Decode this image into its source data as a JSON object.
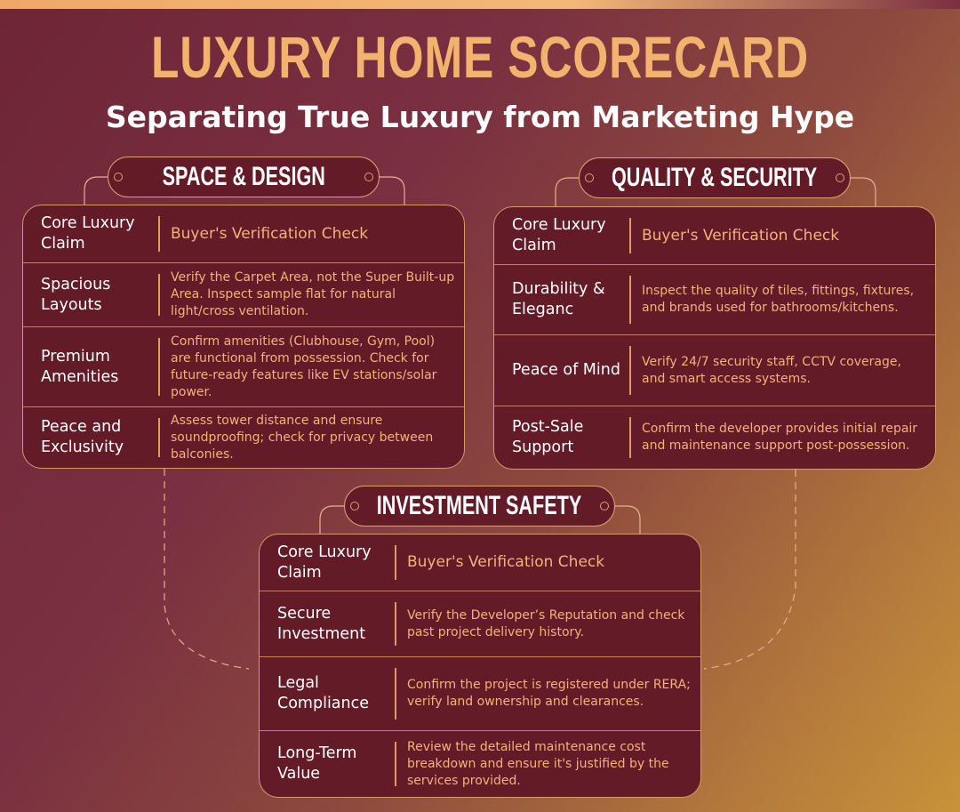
{
  "header": {
    "title": "LUXURY HOME SCORECARD",
    "subtitle": "Separating True Luxury from Marketing Hype"
  },
  "colors": {
    "accent": "#f3b36e",
    "card": "#621b27",
    "border": "#e0a070"
  },
  "sections": [
    {
      "title": "SPACE & DESIGN",
      "head_left": "Core Luxury Claim",
      "head_right": "Buyer's Verification Check",
      "rows": [
        {
          "claim": "Spacious Layouts",
          "check": "Verify the Carpet Area, not the Super Built-up Area. Inspect sample flat for natural light/cross ventilation."
        },
        {
          "claim": "Premium Amenities",
          "check": "Confirm amenities (Clubhouse, Gym, Pool) are functional from possession. Check for future-ready features like EV stations/solar power."
        },
        {
          "claim": "Peace and Exclusivity",
          "check": "Assess tower distance and ensure soundproofing; check for privacy between balconies."
        }
      ]
    },
    {
      "title": "QUALITY & SECURITY",
      "head_left": "Core Luxury Claim",
      "head_right": "Buyer's Verification Check",
      "rows": [
        {
          "claim": "Durability & Eleganc",
          "check": "Inspect the quality of tiles, fittings, fixtures, and brands used for bathrooms/kitchens."
        },
        {
          "claim": "Peace of Mind",
          "check": "Verify 24/7 security staff, CCTV coverage, and smart access systems."
        },
        {
          "claim": "Post-Sale Support",
          "check": "Confirm the developer provides initial repair and maintenance support post-possession."
        }
      ]
    },
    {
      "title": "INVESTMENT SAFETY",
      "head_left": "Core Luxury Claim",
      "head_right": "Buyer's Verification Check",
      "rows": [
        {
          "claim": "Secure Investment",
          "check": "Verify the Developer’s Reputation and check past project delivery history."
        },
        {
          "claim": "Legal Compliance",
          "check": "Confirm the project is registered under RERA; verify land ownership and clearances."
        },
        {
          "claim": "Long-Term Value",
          "check": "Review the detailed maintenance cost breakdown and ensure it's justified by the services provided."
        }
      ]
    }
  ]
}
